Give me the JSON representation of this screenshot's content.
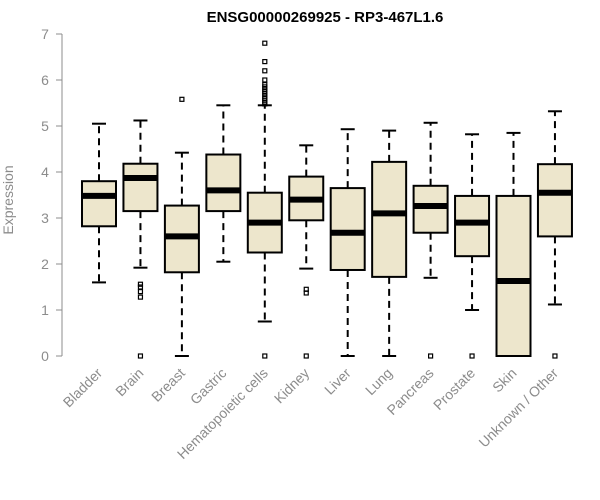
{
  "chart_data": {
    "type": "boxplot",
    "title": "ENSG00000269925 - RP3-467L1.6",
    "xlabel": "",
    "ylabel": "Expression",
    "ylim": [
      0,
      7
    ],
    "yticks": [
      0,
      1,
      2,
      3,
      4,
      5,
      6,
      7
    ],
    "grid": false,
    "colors": {
      "box_fill": "#ede6cc",
      "stroke": "#000000",
      "axis_text": "#8c8c8c",
      "axis_line": "#8c8c8c"
    },
    "categories": [
      "Bladder",
      "Brain",
      "Breast",
      "Gastric",
      "Hematopoietic cells",
      "Kidney",
      "Liver",
      "Lung",
      "Pancreas",
      "Prostate",
      "Skin",
      "Unknown / Other"
    ],
    "boxes": [
      {
        "label": "Bladder",
        "whisker_low": 1.6,
        "q1": 2.82,
        "median": 3.48,
        "q3": 3.8,
        "whisker_high": 5.05,
        "outliers": []
      },
      {
        "label": "Brain",
        "whisker_low": 1.92,
        "q1": 3.15,
        "median": 3.87,
        "q3": 4.18,
        "whisker_high": 5.12,
        "outliers": [
          0,
          1.28,
          1.4,
          1.5,
          1.56
        ]
      },
      {
        "label": "Breast",
        "whisker_low": 0,
        "q1": 1.82,
        "median": 2.6,
        "q3": 3.27,
        "whisker_high": 4.42,
        "outliers": [
          5.58
        ]
      },
      {
        "label": "Gastric",
        "whisker_low": 2.05,
        "q1": 3.15,
        "median": 3.6,
        "q3": 4.38,
        "whisker_high": 5.45,
        "outliers": []
      },
      {
        "label": "Hematopoietic cells",
        "whisker_low": 0.75,
        "q1": 2.25,
        "median": 2.9,
        "q3": 3.55,
        "whisker_high": 5.45,
        "outliers": [
          0,
          5.48,
          5.52,
          5.56,
          5.6,
          5.65,
          5.7,
          5.75,
          5.8,
          5.85,
          5.9,
          6.0,
          6.2,
          6.4,
          6.8
        ]
      },
      {
        "label": "Kidney",
        "whisker_low": 1.9,
        "q1": 2.95,
        "median": 3.4,
        "q3": 3.9,
        "whisker_high": 4.58,
        "outliers": [
          0,
          1.37,
          1.45
        ]
      },
      {
        "label": "Liver",
        "whisker_low": 0,
        "q1": 1.87,
        "median": 2.68,
        "q3": 3.65,
        "whisker_high": 4.93,
        "outliers": []
      },
      {
        "label": "Lung",
        "whisker_low": 0,
        "q1": 1.72,
        "median": 3.1,
        "q3": 4.22,
        "whisker_high": 4.9,
        "outliers": []
      },
      {
        "label": "Pancreas",
        "whisker_low": 1.7,
        "q1": 2.68,
        "median": 3.26,
        "q3": 3.7,
        "whisker_high": 5.07,
        "outliers": [
          0
        ]
      },
      {
        "label": "Prostate",
        "whisker_low": 1.0,
        "q1": 2.17,
        "median": 2.9,
        "q3": 3.48,
        "whisker_high": 4.82,
        "outliers": [
          0
        ]
      },
      {
        "label": "Skin",
        "whisker_low": 0,
        "q1": 0,
        "median": 1.63,
        "q3": 3.48,
        "whisker_high": 4.85,
        "outliers": []
      },
      {
        "label": "Unknown / Other",
        "whisker_low": 1.12,
        "q1": 2.6,
        "median": 3.55,
        "q3": 4.17,
        "whisker_high": 5.32,
        "outliers": [
          0
        ]
      }
    ]
  }
}
